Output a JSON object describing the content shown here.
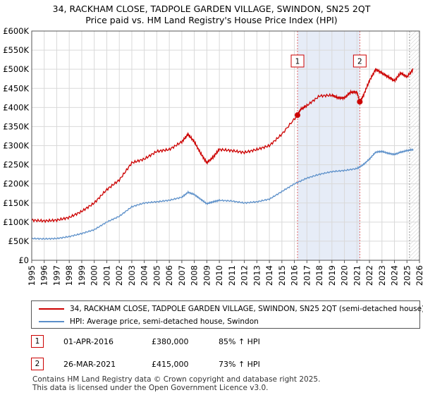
{
  "title_line1": "34, RACKHAM CLOSE, TADPOLE GARDEN VILLAGE, SWINDON, SN25 2QT",
  "title_line2": "Price paid vs. HM Land Registry's House Price Index (HPI)",
  "chart_data": {
    "type": "line",
    "x_range": [
      1995,
      2026
    ],
    "ylim": [
      0,
      600000
    ],
    "y_ticks": [
      {
        "value": 0,
        "label": "£0"
      },
      {
        "value": 50000,
        "label": "£50K"
      },
      {
        "value": 100000,
        "label": "£100K"
      },
      {
        "value": 150000,
        "label": "£150K"
      },
      {
        "value": 200000,
        "label": "£200K"
      },
      {
        "value": 250000,
        "label": "£250K"
      },
      {
        "value": 300000,
        "label": "£300K"
      },
      {
        "value": 350000,
        "label": "£350K"
      },
      {
        "value": 400000,
        "label": "£400K"
      },
      {
        "value": 450000,
        "label": "£450K"
      },
      {
        "value": 500000,
        "label": "£500K"
      },
      {
        "value": 550000,
        "label": "£550K"
      },
      {
        "value": 600000,
        "label": "£600K"
      }
    ],
    "x_ticks": [
      "1995",
      "1996",
      "1997",
      "1998",
      "1999",
      "2000",
      "2001",
      "2002",
      "2003",
      "2004",
      "2005",
      "2006",
      "2007",
      "2008",
      "2009",
      "2010",
      "2011",
      "2012",
      "2013",
      "2014",
      "2015",
      "2016",
      "2017",
      "2018",
      "2019",
      "2020",
      "2021",
      "2022",
      "2023",
      "2024",
      "2025",
      "2026"
    ],
    "grid": true,
    "series": [
      {
        "name": "34, RACKHAM CLOSE, TADPOLE GARDEN VILLAGE, SWINDON, SN25 2QT (semi-detached house)",
        "color": "#cc0000",
        "x": [
          1995.0,
          1996.0,
          1997.0,
          1998.0,
          1999.0,
          2000.0,
          2001.0,
          2002.0,
          2003.0,
          2004.0,
          2005.0,
          2006.0,
          2007.0,
          2007.5,
          2008.0,
          2008.5,
          2009.0,
          2009.5,
          2010.0,
          2011.0,
          2012.0,
          2013.0,
          2014.0,
          2015.0,
          2016.25,
          2016.5,
          2017.0,
          2018.0,
          2019.0,
          2019.5,
          2020.0,
          2020.5,
          2021.0,
          2021.23,
          2021.5,
          2022.0,
          2022.5,
          2023.0,
          2023.5,
          2024.0,
          2024.5,
          2025.0,
          2025.5
        ],
        "y": [
          105000,
          103000,
          105000,
          112000,
          128000,
          150000,
          185000,
          210000,
          255000,
          265000,
          285000,
          290000,
          310000,
          330000,
          310000,
          280000,
          255000,
          270000,
          290000,
          287000,
          282000,
          290000,
          300000,
          330000,
          380000,
          395000,
          405000,
          430000,
          432000,
          425000,
          425000,
          440000,
          440000,
          415000,
          430000,
          470000,
          500000,
          490000,
          480000,
          470000,
          490000,
          480000,
          500000
        ]
      },
      {
        "name": "HPI: Average price, semi-detached house, Swindon",
        "color": "#5b8fc9",
        "x": [
          1995.0,
          1996.0,
          1997.0,
          1998.0,
          1999.0,
          2000.0,
          2001.0,
          2002.0,
          2003.0,
          2004.0,
          2005.0,
          2006.0,
          2007.0,
          2007.5,
          2008.0,
          2008.5,
          2009.0,
          2009.5,
          2010.0,
          2011.0,
          2012.0,
          2013.0,
          2014.0,
          2015.0,
          2016.0,
          2017.0,
          2018.0,
          2019.0,
          2020.0,
          2021.0,
          2021.5,
          2022.0,
          2022.5,
          2023.0,
          2023.5,
          2024.0,
          2024.5,
          2025.0,
          2025.5
        ],
        "y": [
          57000,
          56000,
          57000,
          62000,
          70000,
          80000,
          100000,
          115000,
          140000,
          150000,
          153000,
          157000,
          165000,
          178000,
          172000,
          160000,
          148000,
          153000,
          157000,
          155000,
          150000,
          153000,
          160000,
          180000,
          200000,
          215000,
          225000,
          232000,
          235000,
          240000,
          250000,
          265000,
          283000,
          285000,
          280000,
          277000,
          283000,
          287000,
          290000
        ]
      }
    ],
    "markers": [
      {
        "label": "1",
        "x": 2016.25,
        "y": 380000,
        "date": "01-APR-2016",
        "price": "£380,000",
        "hpi": "85% ↑ HPI"
      },
      {
        "label": "2",
        "x": 2021.23,
        "y": 415000,
        "date": "26-MAR-2021",
        "price": "£415,000",
        "hpi": "73% ↑ HPI"
      }
    ],
    "shaded_range": [
      2016.25,
      2021.23
    ],
    "projection_start": 2025.2
  },
  "footer_line1": "Contains HM Land Registry data © Crown copyright and database right 2025.",
  "footer_line2": "This data is licensed under the Open Government Licence v3.0."
}
